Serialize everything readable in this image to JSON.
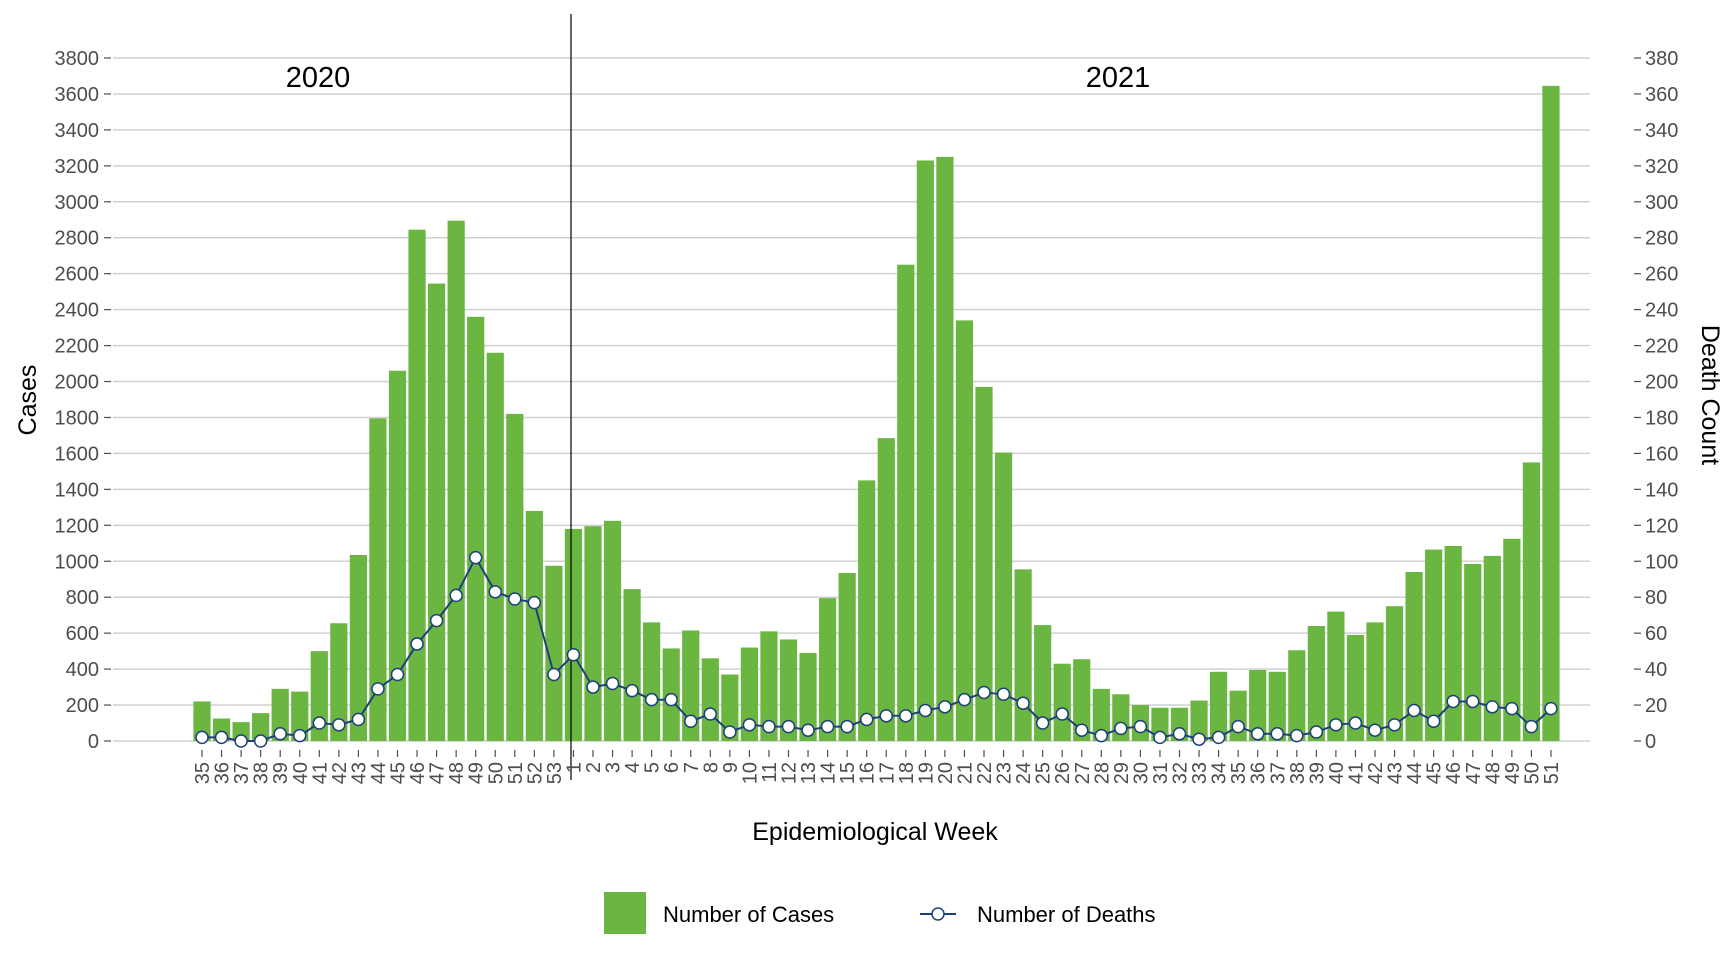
{
  "chart_data": {
    "type": "bar",
    "colors": {
      "cases": "#6ab640",
      "deaths_line": "#1f3f7a",
      "marker_fill": "#ffffff"
    },
    "categories": [
      "35",
      "36",
      "37",
      "38",
      "39",
      "40",
      "41",
      "42",
      "43",
      "44",
      "45",
      "46",
      "47",
      "48",
      "49",
      "50",
      "51",
      "52",
      "53",
      "1",
      "2",
      "3",
      "4",
      "5",
      "6",
      "7",
      "8",
      "9",
      "10",
      "11",
      "12",
      "13",
      "14",
      "15",
      "16",
      "17",
      "18",
      "19",
      "20",
      "21",
      "22",
      "23",
      "24",
      "25",
      "26",
      "27",
      "28",
      "29",
      "30",
      "31",
      "32",
      "33",
      "34",
      "35",
      "36",
      "37",
      "38",
      "39",
      "40",
      "41",
      "42",
      "43",
      "44",
      "45",
      "46",
      "47",
      "48",
      "49",
      "50",
      "51"
    ],
    "series": [
      {
        "name": "Number of Cases",
        "type": "bar",
        "axis": "left",
        "values": [
          220,
          125,
          105,
          155,
          290,
          275,
          500,
          655,
          1035,
          1795,
          2060,
          2845,
          2545,
          2895,
          2360,
          2160,
          1820,
          1280,
          975,
          1180,
          1195,
          1225,
          845,
          660,
          515,
          615,
          460,
          370,
          520,
          610,
          565,
          490,
          795,
          935,
          1450,
          1685,
          2650,
          3230,
          3250,
          2340,
          1970,
          1605,
          955,
          645,
          430,
          455,
          290,
          260,
          200,
          185,
          185,
          225,
          385,
          280,
          395,
          385,
          505,
          640,
          720,
          590,
          660,
          750,
          940,
          1065,
          1085,
          985,
          1030,
          1125,
          1550,
          3645
        ]
      },
      {
        "name": "Number of Deaths",
        "type": "line",
        "axis": "right",
        "values": [
          2,
          2,
          0,
          0,
          4,
          3,
          10,
          9,
          12,
          29,
          37,
          54,
          67,
          81,
          102,
          83,
          79,
          77,
          37,
          48,
          30,
          32,
          28,
          23,
          23,
          11,
          15,
          5,
          9,
          8,
          8,
          6,
          8,
          8,
          12,
          14,
          14,
          17,
          19,
          23,
          27,
          26,
          21,
          10,
          15,
          6,
          3,
          7,
          8,
          2,
          4,
          1,
          2,
          8,
          4,
          4,
          3,
          5,
          9,
          10,
          6,
          9,
          17,
          11,
          22,
          22,
          19,
          18,
          8,
          18
        ]
      }
    ],
    "xlabel": "Epidemiological Week",
    "ylabel": "Cases",
    "y2label": "Death Count",
    "ylim": [
      0,
      3800
    ],
    "y2lim": [
      0,
      380
    ],
    "yticks": [
      0,
      200,
      400,
      600,
      800,
      1000,
      1200,
      1400,
      1600,
      1800,
      2000,
      2200,
      2400,
      2600,
      2800,
      3000,
      3200,
      3400,
      3600,
      3800
    ],
    "y2ticks": [
      0,
      20,
      40,
      60,
      80,
      100,
      120,
      140,
      160,
      180,
      200,
      220,
      240,
      260,
      280,
      300,
      320,
      340,
      360,
      380
    ],
    "annotations": [
      "2020",
      "2021"
    ],
    "grid": true,
    "legend": "bottom"
  }
}
